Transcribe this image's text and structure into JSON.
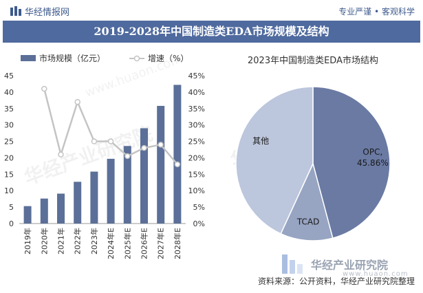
{
  "header": {
    "brand": "华经情报网",
    "slogan": "专业严谨 • 客观科学",
    "title": "2019-2028年中国制造类EDA市场规模及结构"
  },
  "colors": {
    "bar": "#5b6f98",
    "line": "#c4c4c4",
    "pie_opc": "#6a7aa3",
    "pie_tcad": "#97a4c2",
    "pie_other": "#bcc6dc",
    "title_bg": "#4f6a9e"
  },
  "watermark": {
    "text": "华经产业研究院",
    "url": "www.huaon.com"
  },
  "footer": {
    "brand": "华经产业研究院",
    "url": "www.huaon.com",
    "source": "资料来源：公开资料，华经产业研究院整理"
  },
  "chart_data": [
    {
      "type": "bar",
      "legend": [
        "市场规模（亿元）",
        "增速（%）"
      ],
      "categories": [
        "2019年",
        "2020年",
        "2021年",
        "2022年",
        "2023年",
        "2024年E",
        "2025年E",
        "2026年E",
        "2027年E",
        "2028年E"
      ],
      "series": [
        {
          "name": "市场规模（亿元）",
          "type": "bar",
          "axis": "left",
          "values": [
            5.3,
            7.6,
            9.1,
            12.7,
            15.8,
            19.7,
            23.6,
            29.0,
            35.8,
            42.2
          ]
        },
        {
          "name": "增速（%）",
          "type": "line",
          "axis": "right",
          "values": [
            null,
            41.0,
            21.0,
            37.0,
            25.0,
            25.0,
            20.5,
            23.0,
            24.0,
            18.0
          ]
        }
      ],
      "left_ticks": [
        "0",
        "5",
        "10",
        "15",
        "20",
        "25",
        "30",
        "35",
        "40",
        "45"
      ],
      "right_ticks": [
        "0%",
        "5%",
        "10%",
        "15%",
        "20%",
        "25%",
        "30%",
        "35%",
        "40%",
        "45%"
      ],
      "ylim_left": [
        0,
        45
      ],
      "ylim_right": [
        0,
        45
      ],
      "legend_position": "top-left",
      "grid": false
    },
    {
      "type": "pie",
      "title": "2023年中国制造类EDA市场结构",
      "slices": [
        {
          "label": "OPC,",
          "value": 45.86,
          "value_label": "45.86%"
        },
        {
          "label": "TCAD",
          "value": 11.0
        },
        {
          "label": "其他",
          "value": 43.14
        }
      ]
    }
  ]
}
